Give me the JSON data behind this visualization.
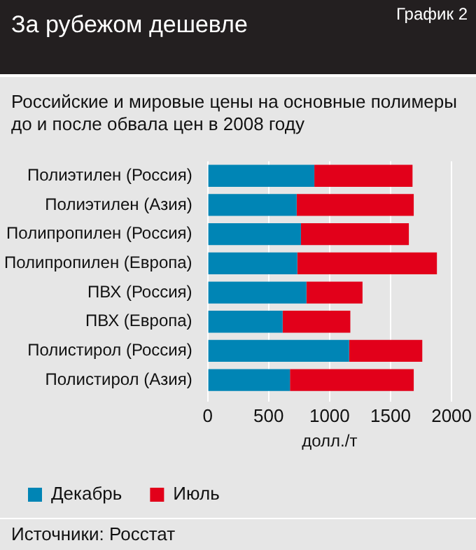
{
  "chart_data": {
    "type": "bar",
    "orientation": "horizontal",
    "stacked": true,
    "title": "За рубежом дешевле",
    "subtitle": "Российские и мировые цены на основные полимеры до и после обвала цен в 2008 году",
    "xlabel": "долл./т",
    "categories": [
      "Полиэтилен (Россия)",
      "Полиэтилен (Азия)",
      "Полипропилен (Россия)",
      "Полипропилен (Европа)",
      "ПВХ (Россия)",
      "ПВХ (Европа)",
      "Полистирол (Россия)",
      "Полистирол (Азия)"
    ],
    "series": [
      {
        "name": "Декабрь",
        "color": "#0085b5",
        "values": [
          875,
          730,
          765,
          735,
          810,
          615,
          1160,
          675
        ]
      },
      {
        "name": "Июль",
        "color": "#e2001a",
        "values": [
          805,
          960,
          885,
          1145,
          460,
          555,
          600,
          1015
        ]
      }
    ],
    "xlim": [
      0,
      2000
    ],
    "xticks": [
      0,
      500,
      1000,
      1500,
      2000
    ],
    "grid": "x",
    "legend": "bottom left",
    "annotations": [
      "График 2",
      "Источники: Росстат"
    ]
  }
}
